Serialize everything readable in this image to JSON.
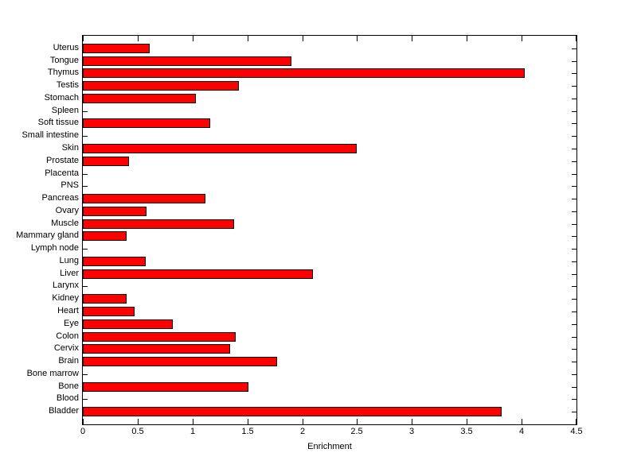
{
  "chart_data": {
    "type": "bar",
    "orientation": "horizontal",
    "title": "",
    "xlabel": "Enrichment",
    "ylabel": "",
    "xlim": [
      0,
      4.5
    ],
    "xticks": [
      0,
      0.5,
      1,
      1.5,
      2,
      2.5,
      3,
      3.5,
      4,
      4.5
    ],
    "xticklabels": [
      "0",
      "0.5",
      "1",
      "1.5",
      "2",
      "2.5",
      "3",
      "3.5",
      "4",
      "4.5"
    ],
    "categories": [
      "Uterus",
      "Tongue",
      "Thymus",
      "Testis",
      "Stomach",
      "Spleen",
      "Soft tissue",
      "Small intestine",
      "Skin",
      "Prostate",
      "Placenta",
      "PNS",
      "Pancreas",
      "Ovary",
      "Muscle",
      "Mammary gland",
      "Lymph node",
      "Lung",
      "Liver",
      "Larynx",
      "Kidney",
      "Heart",
      "Eye",
      "Colon",
      "Cervix",
      "Brain",
      "Bone marrow",
      "Bone",
      "Blood",
      "Bladder"
    ],
    "values": [
      0.61,
      1.9,
      4.03,
      1.42,
      1.03,
      0,
      1.16,
      0,
      2.5,
      0.42,
      0,
      0,
      1.12,
      0.58,
      1.38,
      0.4,
      0,
      0.57,
      2.1,
      0,
      0.4,
      0.47,
      0.82,
      1.39,
      1.34,
      1.77,
      0,
      1.51,
      0,
      3.82
    ],
    "bar_color": "#ff0000",
    "bar_edge_color": "#000000",
    "axis_color": "#000000",
    "background_color": "#ffffff",
    "grid": false,
    "legend": null
  }
}
